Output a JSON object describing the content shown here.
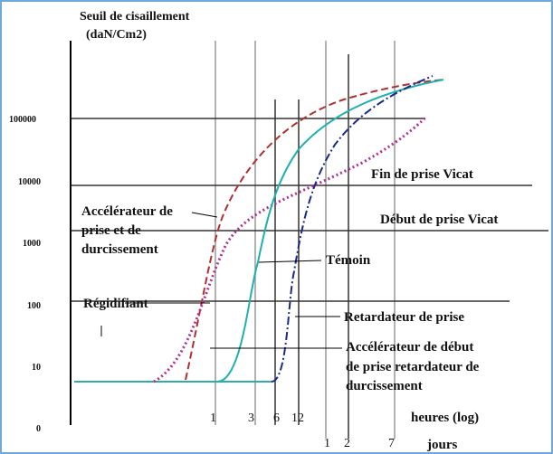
{
  "axis": {
    "title": [
      "Seuil de cisaillement",
      "(daN/Cm2)"
    ],
    "yticks": [
      "100000",
      "10000",
      "1000",
      "100",
      "10",
      "0"
    ],
    "hours_ticks": [
      "1",
      "3",
      "6",
      "12"
    ],
    "hours_label": "heures (log)",
    "days_ticks": [
      "1",
      "2",
      "7"
    ],
    "days_label": "jours"
  },
  "labels": {
    "fin": "Fin de prise Vicat",
    "debut": "Début de prise Vicat",
    "accelerateur": [
      "Accélérateur de",
      "prise et de",
      "durcissement"
    ],
    "temoin": "Témoin",
    "regidifiant": "Régidifiant",
    "retardateur": "Retardateur de prise",
    "accelerateur_debut": [
      "Accélérateur de début",
      "de prise retardateur de",
      "durcissement"
    ]
  }
}
